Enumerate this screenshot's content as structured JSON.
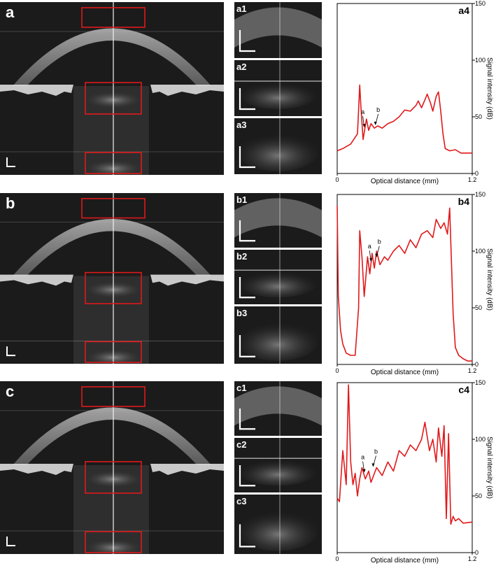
{
  "panels": [
    {
      "label": "a",
      "insets": [
        "a1",
        "a2",
        "a3"
      ],
      "plot_label": "a4"
    },
    {
      "label": "b",
      "insets": [
        "b1",
        "b2",
        "b3"
      ],
      "plot_label": "b4"
    },
    {
      "label": "c",
      "insets": [
        "c1",
        "c2",
        "c3"
      ],
      "plot_label": "c4"
    }
  ],
  "colors": {
    "curve": "#e0191b",
    "box": "#e0191b",
    "oct_bg": "#1b1b1b"
  },
  "chart_data": [
    {
      "type": "line",
      "title": "a4",
      "xlabel": "Optical distance (mm)",
      "ylabel": "Signal intensity (dB)",
      "xlim": [
        0,
        1.2
      ],
      "ylim": [
        0,
        150
      ],
      "x_ticks": [
        "0",
        "1.2"
      ],
      "y_ticks": [
        "0",
        "50",
        "100",
        "150"
      ],
      "annotations": [
        {
          "text": "a",
          "x": 0.24,
          "y": 40
        },
        {
          "text": "b",
          "x": 0.34,
          "y": 42
        }
      ],
      "series": [
        {
          "x": [
            0,
            0.05,
            0.12,
            0.18,
            0.2,
            0.21,
            0.23,
            0.26,
            0.28,
            0.3,
            0.33,
            0.36,
            0.4,
            0.45,
            0.5,
            0.55,
            0.6,
            0.65,
            0.7,
            0.72,
            0.75,
            0.78,
            0.8,
            0.83,
            0.85,
            0.88,
            0.9,
            0.92,
            0.94,
            0.96,
            1.0,
            1.05,
            1.1,
            1.2
          ],
          "y": [
            20,
            22,
            26,
            35,
            78,
            60,
            30,
            48,
            38,
            44,
            40,
            42,
            40,
            44,
            46,
            50,
            56,
            55,
            60,
            64,
            58,
            65,
            70,
            62,
            55,
            68,
            72,
            55,
            35,
            22,
            20,
            21,
            18,
            18
          ]
        }
      ]
    },
    {
      "type": "line",
      "title": "b4",
      "xlabel": "Optical distance (mm)",
      "ylabel": "Signal intensity (dB)",
      "xlim": [
        0,
        1.2
      ],
      "ylim": [
        0,
        150
      ],
      "x_ticks": [
        "0",
        "1.2"
      ],
      "y_ticks": [
        "0",
        "50",
        "100",
        "150"
      ],
      "annotations": [
        {
          "text": "a",
          "x": 0.3,
          "y": 90
        },
        {
          "text": "b",
          "x": 0.35,
          "y": 94
        }
      ],
      "series": [
        {
          "x": [
            0,
            0.01,
            0.03,
            0.05,
            0.08,
            0.12,
            0.16,
            0.19,
            0.2,
            0.22,
            0.24,
            0.27,
            0.29,
            0.31,
            0.33,
            0.35,
            0.38,
            0.42,
            0.45,
            0.5,
            0.55,
            0.6,
            0.65,
            0.7,
            0.75,
            0.8,
            0.85,
            0.88,
            0.92,
            0.95,
            0.98,
            1.0,
            1.03,
            1.05,
            1.08,
            1.12,
            1.16,
            1.2
          ],
          "y": [
            140,
            60,
            30,
            18,
            10,
            8,
            8,
            50,
            118,
            95,
            60,
            95,
            80,
            98,
            85,
            100,
            88,
            95,
            92,
            100,
            105,
            98,
            110,
            103,
            115,
            118,
            112,
            128,
            120,
            125,
            115,
            138,
            45,
            15,
            8,
            5,
            3,
            3
          ]
        }
      ]
    },
    {
      "type": "line",
      "title": "c4",
      "xlabel": "Optical distance (mm)",
      "ylabel": "Signal intensity (dB)",
      "xlim": [
        0,
        1.2
      ],
      "ylim": [
        0,
        150
      ],
      "x_ticks": [
        "0",
        "1.2"
      ],
      "y_ticks": [
        "0",
        "50",
        "100",
        "150"
      ],
      "annotations": [
        {
          "text": "a",
          "x": 0.24,
          "y": 70
        },
        {
          "text": "b",
          "x": 0.32,
          "y": 75
        }
      ],
      "series": [
        {
          "x": [
            0,
            0.02,
            0.05,
            0.08,
            0.1,
            0.12,
            0.14,
            0.16,
            0.18,
            0.2,
            0.22,
            0.25,
            0.28,
            0.3,
            0.35,
            0.4,
            0.45,
            0.5,
            0.55,
            0.6,
            0.65,
            0.7,
            0.75,
            0.78,
            0.82,
            0.85,
            0.88,
            0.9,
            0.93,
            0.95,
            0.97,
            0.99,
            1.01,
            1.03,
            1.05,
            1.08,
            1.12,
            1.2
          ],
          "y": [
            48,
            45,
            90,
            60,
            148,
            80,
            60,
            70,
            50,
            65,
            75,
            65,
            72,
            62,
            75,
            68,
            80,
            72,
            90,
            85,
            95,
            90,
            100,
            115,
            90,
            100,
            80,
            110,
            85,
            112,
            30,
            105,
            25,
            32,
            28,
            30,
            26,
            27
          ]
        }
      ]
    }
  ]
}
